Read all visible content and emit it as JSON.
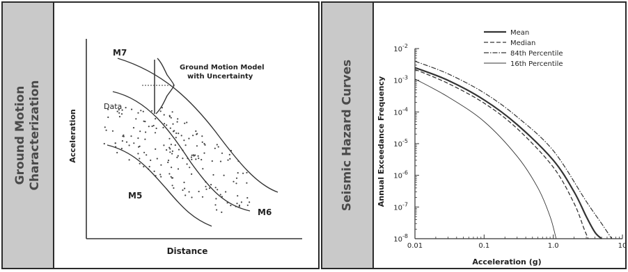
{
  "left_panel": {
    "side_title_line1": "Ground Motion",
    "side_title_line2": "Characterization",
    "y_axis_label": "Acceleration",
    "x_axis_label": "Distance",
    "model_label_line1": "Ground Motion Model",
    "model_label_line2": "with Uncertainty",
    "data_label": "Data",
    "curves": [
      {
        "label": "M7"
      },
      {
        "label": "M6"
      },
      {
        "label": "M5"
      }
    ]
  },
  "right_panel": {
    "side_title": "Seismic Hazard Curves"
  },
  "chart_data": {
    "type": "line",
    "xlabel": "Acceleration (g)",
    "ylabel": "Annual Exceedance Frequency",
    "xscale": "log",
    "yscale": "log",
    "xlim": [
      0.01,
      10
    ],
    "ylim": [
      1e-08,
      0.01
    ],
    "x_ticks": [
      {
        "value": 0.01,
        "label": "0.01"
      },
      {
        "value": 0.1,
        "label": "0.1"
      },
      {
        "value": 1,
        "label": "1.0"
      },
      {
        "value": 10,
        "label": "10"
      }
    ],
    "y_ticks": [
      {
        "value": 0.01,
        "base": "10",
        "exp": "-2"
      },
      {
        "value": 0.001,
        "base": "10",
        "exp": "-3"
      },
      {
        "value": 0.0001,
        "base": "10",
        "exp": "-4"
      },
      {
        "value": 1e-05,
        "base": "10",
        "exp": "-5"
      },
      {
        "value": 1e-06,
        "base": "10",
        "exp": "-6"
      },
      {
        "value": 1e-07,
        "base": "10",
        "exp": "-7"
      },
      {
        "value": 1e-08,
        "base": "10",
        "exp": "-8"
      }
    ],
    "legend_position": "top-right",
    "series": [
      {
        "name": "Mean",
        "style": "solid-thick",
        "x": [
          0.01,
          0.03,
          0.1,
          0.3,
          1,
          2,
          3,
          4,
          5
        ],
        "y": [
          0.0025,
          0.001,
          0.00024,
          4e-05,
          3e-06,
          3e-07,
          5e-08,
          1.6e-08,
          1e-08
        ]
      },
      {
        "name": "Median",
        "style": "dashed",
        "x": [
          0.01,
          0.03,
          0.1,
          0.3,
          1,
          2,
          2.8,
          3.2
        ],
        "y": [
          0.0022,
          0.0008,
          0.00019,
          3e-05,
          1.8e-06,
          1.3e-07,
          2e-08,
          1e-08
        ]
      },
      {
        "name": "84th Percentile",
        "style": "dash-dot",
        "x": [
          0.01,
          0.03,
          0.1,
          0.3,
          1,
          3,
          5,
          7
        ],
        "y": [
          0.004,
          0.0016,
          0.0004,
          7e-05,
          6e-06,
          1.5e-07,
          3e-08,
          1e-08
        ]
      },
      {
        "name": "16th Percentile",
        "style": "thin",
        "x": [
          0.01,
          0.03,
          0.1,
          0.3,
          0.6,
          0.9,
          1.1
        ],
        "y": [
          0.0011,
          0.0003,
          5e-05,
          4e-06,
          4e-07,
          5e-08,
          1e-08
        ]
      }
    ]
  }
}
